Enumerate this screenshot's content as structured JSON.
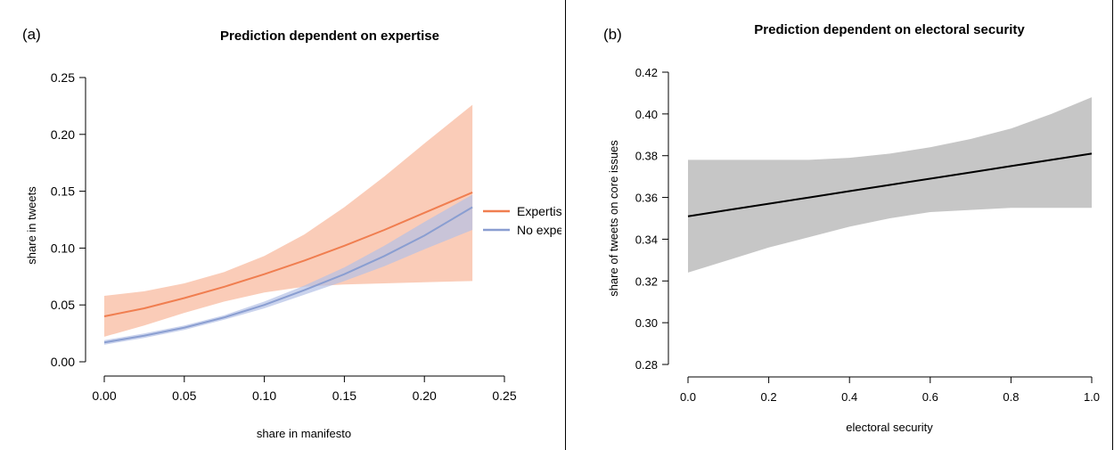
{
  "chart_data": [
    {
      "panel_label": "(a)",
      "type": "line",
      "title": "Prediction dependent on expertise",
      "xlabel": "share in manifesto",
      "ylabel": "share in tweets",
      "xlim": [
        0,
        0.25
      ],
      "ylim": [
        0,
        0.25
      ],
      "x_ticks": [
        "0.00",
        "0.05",
        "0.10",
        "0.15",
        "0.20",
        "0.25"
      ],
      "y_ticks": [
        "0.00",
        "0.05",
        "0.10",
        "0.15",
        "0.20",
        "0.25"
      ],
      "legend_position": "right",
      "grid": false,
      "series": [
        {
          "name": "Expertise",
          "color": "#f07e50",
          "band_color": "#f8b79a",
          "x": [
            0,
            0.025,
            0.05,
            0.075,
            0.1,
            0.125,
            0.15,
            0.175,
            0.2,
            0.23
          ],
          "values": [
            0.04,
            0.047,
            0.056,
            0.066,
            0.077,
            0.089,
            0.102,
            0.116,
            0.131,
            0.149
          ],
          "lower": [
            0.022,
            0.032,
            0.043,
            0.053,
            0.061,
            0.066,
            0.068,
            0.069,
            0.07,
            0.071
          ],
          "upper": [
            0.058,
            0.062,
            0.069,
            0.079,
            0.093,
            0.112,
            0.136,
            0.163,
            0.192,
            0.226
          ]
        },
        {
          "name": "No expertise",
          "color": "#8a9ed1",
          "band_color": "#b3c0e6",
          "x": [
            0,
            0.025,
            0.05,
            0.075,
            0.1,
            0.125,
            0.15,
            0.175,
            0.2,
            0.23
          ],
          "values": [
            0.017,
            0.023,
            0.03,
            0.039,
            0.05,
            0.063,
            0.077,
            0.093,
            0.111,
            0.136
          ],
          "lower": [
            0.015,
            0.021,
            0.028,
            0.037,
            0.047,
            0.059,
            0.071,
            0.084,
            0.099,
            0.116
          ],
          "upper": [
            0.019,
            0.025,
            0.032,
            0.041,
            0.053,
            0.067,
            0.083,
            0.102,
            0.123,
            0.147
          ]
        }
      ]
    },
    {
      "panel_label": "(b)",
      "type": "line",
      "title": "Prediction dependent on electoral security",
      "xlabel": "electoral security",
      "ylabel": "share of tweets on core issues",
      "xlim": [
        0,
        1
      ],
      "ylim": [
        0.28,
        0.42
      ],
      "x_ticks": [
        "0.0",
        "0.2",
        "0.4",
        "0.6",
        "0.8",
        "1.0"
      ],
      "y_ticks": [
        "0.28",
        "0.30",
        "0.32",
        "0.34",
        "0.36",
        "0.38",
        "0.40",
        "0.42"
      ],
      "grid": false,
      "series": [
        {
          "color": "#000000",
          "band_color": "#c6c6c6",
          "x": [
            0,
            0.1,
            0.2,
            0.3,
            0.4,
            0.5,
            0.6,
            0.7,
            0.8,
            0.9,
            1.0
          ],
          "values": [
            0.351,
            0.354,
            0.357,
            0.36,
            0.363,
            0.366,
            0.369,
            0.372,
            0.375,
            0.378,
            0.381
          ],
          "lower": [
            0.324,
            0.33,
            0.336,
            0.341,
            0.346,
            0.35,
            0.353,
            0.354,
            0.355,
            0.355,
            0.355
          ],
          "upper": [
            0.378,
            0.378,
            0.378,
            0.378,
            0.379,
            0.381,
            0.384,
            0.388,
            0.393,
            0.4,
            0.408
          ]
        }
      ]
    }
  ]
}
